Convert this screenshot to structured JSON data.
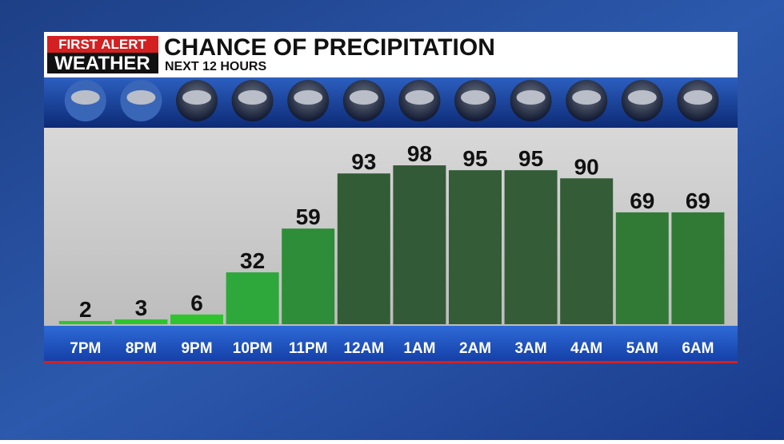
{
  "logo": {
    "line1": "FIRST ALERT",
    "line2": "WEATHER"
  },
  "chart_data": {
    "type": "bar",
    "title": "CHANCE OF PRECIPITATION",
    "subtitle": "NEXT 12 HOURS",
    "categories": [
      "7PM",
      "8PM",
      "9PM",
      "10PM",
      "11PM",
      "12AM",
      "1AM",
      "2AM",
      "3AM",
      "4AM",
      "5AM",
      "6AM"
    ],
    "values": [
      2,
      3,
      6,
      32,
      59,
      93,
      98,
      95,
      95,
      90,
      69,
      69
    ],
    "colors": [
      "#2fc42f",
      "#2fc42f",
      "#2fc42f",
      "#2ea83a",
      "#2e8d38",
      "#325c36",
      "#335a37",
      "#335c37",
      "#335c37",
      "#335c37",
      "#307a36",
      "#307a36"
    ],
    "ylim": [
      0,
      100
    ]
  }
}
